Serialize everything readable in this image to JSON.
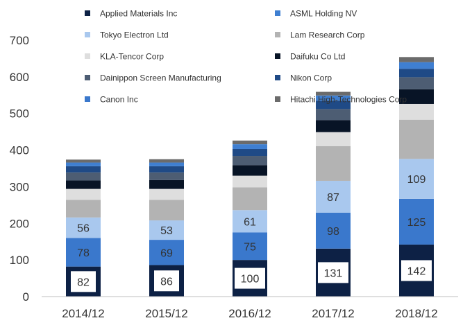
{
  "chart_data": {
    "type": "bar",
    "stacked": true,
    "title": "",
    "xlabel": "",
    "ylabel": "",
    "ylim": [
      0,
      700
    ],
    "yticks": [
      0,
      100,
      200,
      300,
      400,
      500,
      600,
      700
    ],
    "categories": [
      "2014/12",
      "2015/12",
      "2016/12",
      "2017/12",
      "2018/12"
    ],
    "legend_position": "top",
    "series": [
      {
        "name": "Applied Materials Inc",
        "color": "#0d2145",
        "values": [
          82,
          86,
          100,
          131,
          142
        ],
        "labeled": true
      },
      {
        "name": "Canon Inc",
        "color": "#3a78cc",
        "values": [
          78,
          69,
          75,
          98,
          125
        ],
        "labeled": true
      },
      {
        "name": "Tokyo Electron Ltd",
        "color": "#a9c8ee",
        "values": [
          56,
          53,
          61,
          87,
          109
        ],
        "labeled": true
      },
      {
        "name": "Lam Research Corp",
        "color": "#b3b3b3",
        "values": [
          48,
          56,
          62,
          95,
          107
        ],
        "labeled": false
      },
      {
        "name": "KLA-Tencor Corp",
        "color": "#dedede",
        "values": [
          30,
          30,
          32,
          38,
          43
        ],
        "labeled": false
      },
      {
        "name": "Daifuku Co Ltd",
        "color": "#081426",
        "values": [
          23,
          24,
          29,
          33,
          40
        ],
        "labeled": false
      },
      {
        "name": "Dainippon Screen Manufacturing",
        "color": "#4d5d73",
        "values": [
          22,
          21,
          25,
          30,
          33
        ],
        "labeled": false
      },
      {
        "name": "Nikon Corp",
        "color": "#1f4a86",
        "values": [
          17,
          17,
          19,
          23,
          23
        ],
        "labeled": false
      },
      {
        "name": "ASML Holding NV",
        "color": "#3f7fd1",
        "values": [
          10,
          10,
          13,
          14,
          18
        ],
        "labeled": false
      },
      {
        "name": "Hitachi High-Technologies Corp",
        "color": "#6b6b6b",
        "values": [
          8,
          9,
          10,
          10,
          14
        ],
        "labeled": false
      }
    ],
    "legend": [
      [
        "Applied Materials Inc",
        "ASML Holding NV"
      ],
      [
        "Tokyo Electron Ltd",
        "Lam Research Corp"
      ],
      [
        "KLA-Tencor Corp",
        "Daifuku Co Ltd"
      ],
      [
        "Dainippon Screen Manufacturing",
        "Nikon Corp"
      ],
      [
        "Canon Inc",
        "Hitachi High-Technologies Corp"
      ]
    ]
  }
}
